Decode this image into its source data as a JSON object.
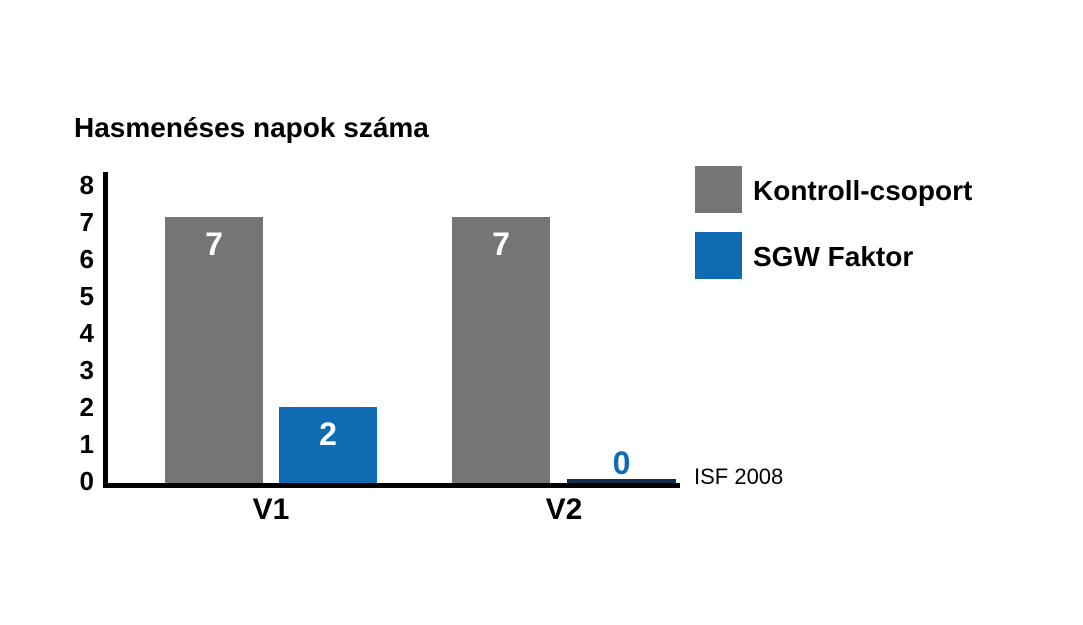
{
  "chart_data": {
    "type": "bar",
    "title": "Hasmenéses napok száma",
    "categories": [
      "V1",
      "V2"
    ],
    "series": [
      {
        "name": "Kontroll-csoport",
        "values": [
          7,
          7
        ],
        "color": "#737577"
      },
      {
        "name": "SGW Faktor",
        "values": [
          2,
          0
        ],
        "color": "#0f6bb2"
      }
    ],
    "ylim": [
      0,
      8
    ],
    "yticks": [
      0,
      1,
      2,
      3,
      4,
      5,
      6,
      7,
      8
    ],
    "bar_value_labels_shown": true,
    "annotation": "ISF 2008",
    "legend_position": "top-right",
    "grid": false,
    "colors": {
      "axis": "#000000",
      "bar_value_text": "#ffffff",
      "zero_bar_line": "#142e47",
      "text": "#000000"
    }
  }
}
